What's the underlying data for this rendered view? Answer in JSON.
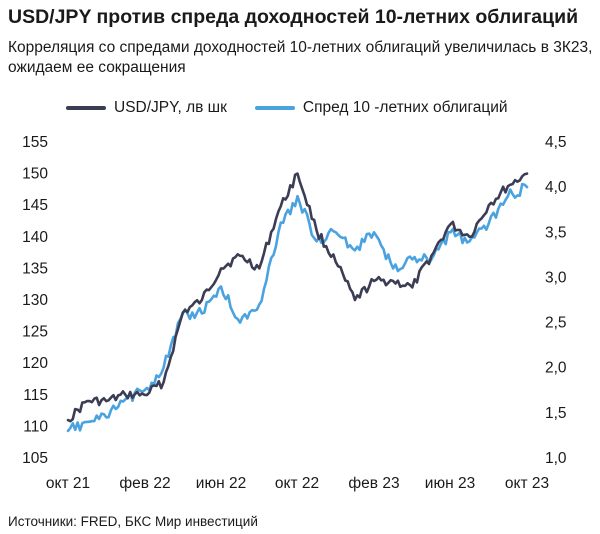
{
  "title": "USD/JPY против спреда доходностей 10-летних облигаций",
  "subtitle": "Корреляция со спредами доходностей 10-летних облигаций увеличилась в 3К23, ожидаем ее сокращения",
  "source": "Источники: FRED, БКС Мир инвестиций",
  "colors": {
    "usdjpy": "#3b3d55",
    "spread": "#4aa3e0",
    "text": "#1a1a1a"
  },
  "legend": [
    {
      "label": "USD/JPY, лв шк",
      "color": "#3b3d55"
    },
    {
      "label": "Спред 10 -летних облигаций",
      "color": "#4aa3e0"
    }
  ],
  "chart_data": {
    "type": "line",
    "x_ticks": [
      "окт 21",
      "фев 22",
      "июн 22",
      "окт 22",
      "фев 23",
      "июн 23",
      "окт 23"
    ],
    "y_left": {
      "ylim": [
        105,
        155
      ],
      "ticks": [
        "105",
        "110",
        "115",
        "120",
        "125",
        "130",
        "135",
        "140",
        "145",
        "150",
        "155"
      ]
    },
    "y_right": {
      "ylim": [
        1.0,
        4.5
      ],
      "ticks": [
        "1,0",
        "1,5",
        "2,0",
        "2,5",
        "3,0",
        "3,5",
        "4,0",
        "4,5"
      ]
    },
    "x": [
      "2021-10",
      "2021-11",
      "2021-12",
      "2022-01",
      "2022-02",
      "2022-03",
      "2022-04",
      "2022-05",
      "2022-06",
      "2022-07",
      "2022-08",
      "2022-09",
      "2022-10",
      "2022-11",
      "2022-12",
      "2023-01",
      "2023-02",
      "2023-03",
      "2023-04",
      "2023-05",
      "2023-06",
      "2023-07",
      "2023-08",
      "2023-09",
      "2023-10"
    ],
    "series": [
      {
        "name": "USD/JPY, лв шк",
        "axis": "left",
        "values": [
          111,
          114,
          114,
          115,
          115,
          117,
          128,
          130,
          135,
          137,
          135,
          144,
          150,
          141,
          136,
          130,
          133,
          133,
          132,
          137,
          142,
          140,
          145,
          148,
          150
        ]
      },
      {
        "name": "Спред 10 -летних облигаций",
        "axis": "right",
        "values": [
          1.3,
          1.4,
          1.45,
          1.65,
          1.75,
          2.0,
          2.6,
          2.6,
          2.9,
          2.5,
          2.7,
          3.5,
          3.9,
          3.4,
          3.5,
          3.3,
          3.5,
          3.1,
          3.2,
          3.2,
          3.5,
          3.4,
          3.6,
          3.9,
          4.0
        ]
      }
    ]
  }
}
